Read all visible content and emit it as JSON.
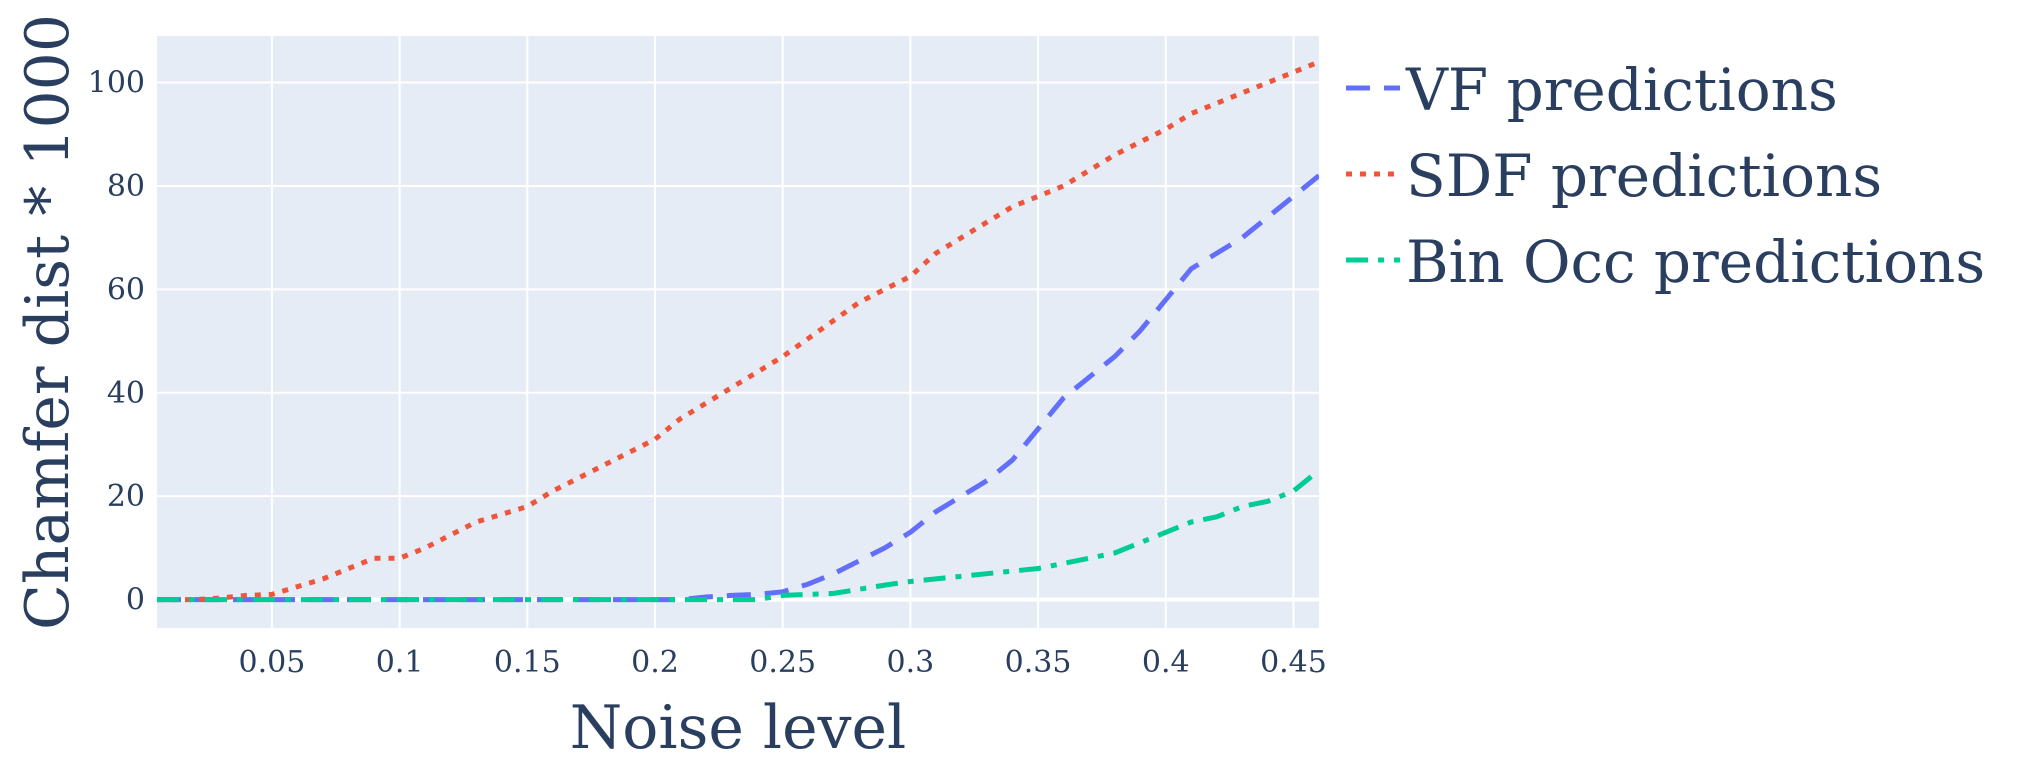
{
  "chart_data": {
    "type": "line",
    "xlabel": "Noise level",
    "ylabel": "Chamfer dist * 1000",
    "xlim": [
      0.005,
      0.46
    ],
    "ylim": [
      -5.5,
      109
    ],
    "x_ticks": [
      {
        "value": 0.05,
        "label": "0.05"
      },
      {
        "value": 0.1,
        "label": "0.1"
      },
      {
        "value": 0.15,
        "label": "0.15"
      },
      {
        "value": 0.2,
        "label": "0.2"
      },
      {
        "value": 0.25,
        "label": "0.25"
      },
      {
        "value": 0.3,
        "label": "0.3"
      },
      {
        "value": 0.35,
        "label": "0.35"
      },
      {
        "value": 0.4,
        "label": "0.4"
      },
      {
        "value": 0.45,
        "label": "0.45"
      }
    ],
    "y_ticks": [
      {
        "value": 0,
        "label": "0"
      },
      {
        "value": 20,
        "label": "20"
      },
      {
        "value": 40,
        "label": "40"
      },
      {
        "value": 60,
        "label": "60"
      },
      {
        "value": 80,
        "label": "80"
      },
      {
        "value": 100,
        "label": "100"
      }
    ],
    "grid": true,
    "legend_position": "right",
    "background_color": "#e5ecf6",
    "grid_color": "#ffffff",
    "text_color": "#2a3f5f",
    "series": [
      {
        "name": "VF predictions",
        "color": "#636efa",
        "dash": "dash",
        "x": [
          0.005,
          0.02,
          0.05,
          0.1,
          0.15,
          0.2,
          0.21,
          0.22,
          0.23,
          0.24,
          0.25,
          0.26,
          0.27,
          0.28,
          0.29,
          0.3,
          0.31,
          0.32,
          0.33,
          0.34,
          0.35,
          0.36,
          0.37,
          0.38,
          0.39,
          0.4,
          0.41,
          0.42,
          0.43,
          0.44,
          0.45,
          0.46
        ],
        "y": [
          0,
          0,
          0,
          0,
          0,
          0,
          0,
          0.5,
          0.8,
          1,
          1.5,
          3,
          5,
          7.5,
          10,
          13,
          17,
          20,
          23,
          27,
          33,
          39,
          43,
          47,
          52,
          58,
          64,
          67,
          70,
          74,
          78,
          82
        ]
      },
      {
        "name": "SDF predictions",
        "color": "#ef553b",
        "dash": "dot",
        "x": [
          0.005,
          0.02,
          0.03,
          0.04,
          0.05,
          0.06,
          0.07,
          0.08,
          0.09,
          0.1,
          0.11,
          0.12,
          0.13,
          0.14,
          0.15,
          0.16,
          0.17,
          0.18,
          0.19,
          0.2,
          0.21,
          0.22,
          0.23,
          0.24,
          0.25,
          0.26,
          0.27,
          0.28,
          0.29,
          0.3,
          0.31,
          0.32,
          0.33,
          0.34,
          0.35,
          0.36,
          0.37,
          0.38,
          0.39,
          0.4,
          0.41,
          0.42,
          0.43,
          0.44,
          0.45,
          0.46
        ],
        "y": [
          0,
          0,
          0.3,
          0.8,
          1,
          2.5,
          4,
          6,
          8,
          8,
          10,
          12.5,
          15,
          16.5,
          18,
          21,
          23.5,
          26,
          28.5,
          31,
          35,
          38,
          41,
          44,
          47,
          50.5,
          54,
          57.5,
          60,
          62.5,
          67,
          70,
          73,
          76,
          78,
          80,
          83,
          86,
          88.5,
          91,
          94,
          96,
          98,
          100,
          102,
          104
        ]
      },
      {
        "name": "Bin Occ predictions",
        "color": "#00cc96",
        "dash": "dashdot",
        "x": [
          0.005,
          0.05,
          0.1,
          0.15,
          0.2,
          0.24,
          0.25,
          0.26,
          0.27,
          0.28,
          0.29,
          0.3,
          0.31,
          0.32,
          0.33,
          0.34,
          0.35,
          0.36,
          0.37,
          0.38,
          0.39,
          0.4,
          0.41,
          0.42,
          0.43,
          0.44,
          0.45,
          0.46
        ],
        "y": [
          0,
          0,
          0,
          0,
          0,
          0,
          0.8,
          1,
          1.2,
          2,
          2.8,
          3.5,
          4,
          4.5,
          5,
          5.5,
          6,
          7,
          8,
          9,
          11,
          13,
          15,
          16,
          18,
          19,
          21,
          25
        ]
      }
    ]
  }
}
